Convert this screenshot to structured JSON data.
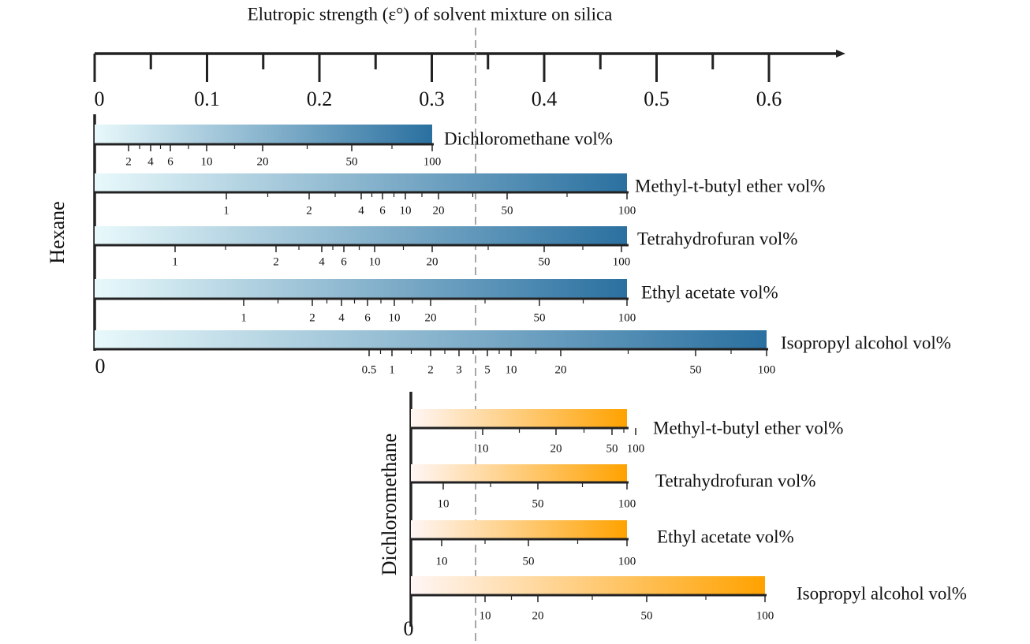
{
  "axis": {
    "title": "Elutropic strength (ε°) of solvent mixture on silica",
    "ticks": [
      0,
      0.1,
      0.2,
      0.3,
      0.4,
      0.5,
      0.6
    ]
  },
  "groups": [
    {
      "label": "Hexane",
      "origin": "0",
      "bars": [
        {
          "label": "Dichloromethane vol%",
          "ticks": [
            "2",
            "4",
            "6",
            "10",
            "20",
            "50",
            "100"
          ]
        },
        {
          "label": "Methyl-t-butyl ether vol%",
          "ticks": [
            "1",
            "2",
            "4",
            "6",
            "10",
            "20",
            "50",
            "100"
          ]
        },
        {
          "label": "Tetrahydrofuran vol%",
          "ticks": [
            "1",
            "2",
            "4",
            "6",
            "10",
            "20",
            "50",
            "100"
          ]
        },
        {
          "label": "Ethyl acetate vol%",
          "ticks": [
            "1",
            "2",
            "4",
            "6",
            "10",
            "20",
            "50",
            "100"
          ]
        },
        {
          "label": "Isopropyl alcohol vol%",
          "ticks": [
            "0.5",
            "1",
            "2",
            "3",
            "5",
            "10",
            "20",
            "50",
            "100"
          ]
        }
      ]
    },
    {
      "label": "Dichloromethane",
      "origin": "0",
      "bars": [
        {
          "label": "Methyl-t-butyl ether vol%",
          "ticks": [
            "10",
            "20",
            "50",
            "100"
          ]
        },
        {
          "label": "Tetrahydrofuran vol%",
          "ticks": [
            "10",
            "50",
            "100"
          ]
        },
        {
          "label": "Ethyl acetate vol%",
          "ticks": [
            "10",
            "50",
            "100"
          ]
        },
        {
          "label": "Isopropyl alcohol vol%",
          "ticks": [
            "10",
            "20",
            "50",
            "100"
          ]
        }
      ]
    }
  ]
}
